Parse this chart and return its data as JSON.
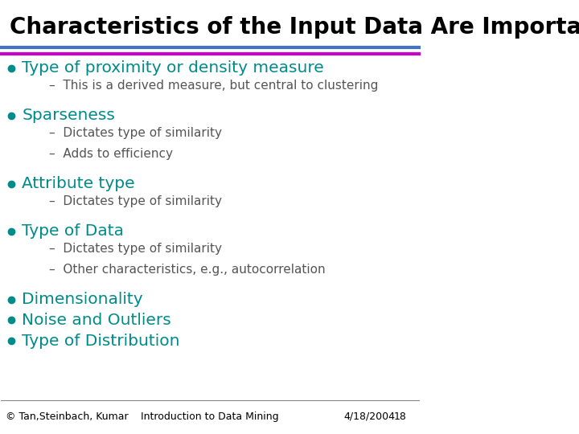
{
  "title": "Characteristics of the Input Data Are Important",
  "title_color": "#000000",
  "title_fontsize": 20,
  "background_color": "#ffffff",
  "bullet_color": "#008B8B",
  "sub_dash_color": "#555555",
  "bullet_items": [
    {
      "text": "Type of proximity or density measure",
      "sub": [
        "This is a derived measure, but central to clustering"
      ]
    },
    {
      "text": "Sparseness",
      "sub": [
        "Dictates type of similarity",
        "Adds to efficiency"
      ]
    },
    {
      "text": "Attribute type",
      "sub": [
        "Dictates type of similarity"
      ]
    },
    {
      "text": "Type of Data",
      "sub": [
        "Dictates type of similarity",
        "Other characteristics, e.g., autocorrelation"
      ]
    },
    {
      "text": "Dimensionality",
      "sub": []
    },
    {
      "text": "Noise and Outliers",
      "sub": []
    },
    {
      "text": "Type of Distribution",
      "sub": []
    }
  ],
  "footer_left": "© Tan,Steinbach, Kumar",
  "footer_center": "Introduction to Data Mining",
  "footer_right": "4/18/2004",
  "footer_page": "18",
  "footer_fontsize": 9,
  "footer_color": "#000000",
  "separator_line_color1": "#4472c4",
  "separator_line_color2": "#cc00cc"
}
